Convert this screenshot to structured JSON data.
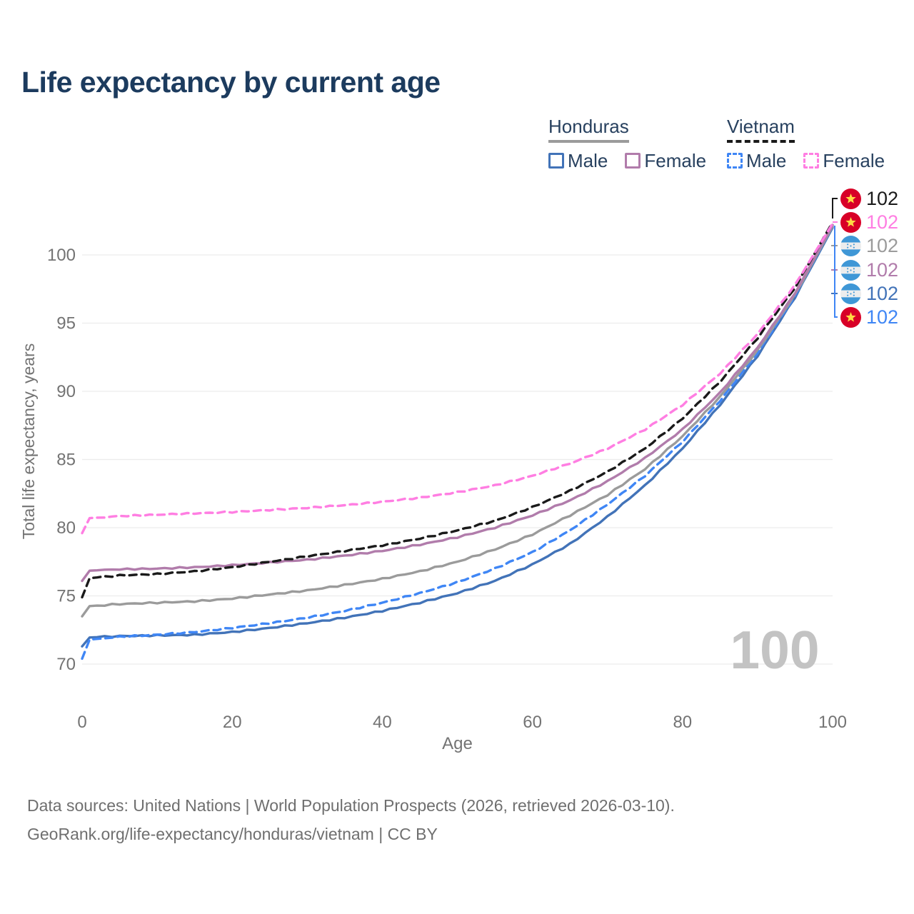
{
  "title": "Life expectancy by current age",
  "legend": {
    "groups": [
      {
        "name": "Honduras",
        "line_style": "solid",
        "underline_color": "#9b9b9b",
        "items": [
          {
            "label": "Male",
            "color": "#4273b8",
            "dashed": false
          },
          {
            "label": "Female",
            "color": "#b17cab",
            "dashed": false
          }
        ]
      },
      {
        "name": "Vietnam",
        "line_style": "dashed",
        "underline_color": "#1a1a1a",
        "items": [
          {
            "label": "Male",
            "color": "#3f86f5",
            "dashed": true
          },
          {
            "label": "Female",
            "color": "#ff7ee2",
            "dashed": true
          }
        ]
      }
    ]
  },
  "chart_data": {
    "type": "line",
    "xlabel": "Age",
    "ylabel": "Total life expectancy, years",
    "x_ticks": [
      0,
      20,
      40,
      60,
      80,
      100
    ],
    "y_ticks": [
      70,
      75,
      80,
      85,
      90,
      95,
      100
    ],
    "xlim": [
      0,
      100
    ],
    "ylim": [
      69.5,
      103
    ],
    "grid": "horizontal",
    "gridline_color": "#ececec",
    "tick_color": "#737373",
    "watermark": "100",
    "watermark_color": "#c3c3c3",
    "x": [
      0,
      1,
      5,
      10,
      15,
      20,
      25,
      30,
      35,
      40,
      45,
      50,
      55,
      60,
      65,
      70,
      75,
      80,
      85,
      90,
      95,
      100
    ],
    "series": [
      {
        "name": "Honduras Male",
        "country": "Honduras",
        "sex": "male",
        "color": "#4273b8",
        "dashed": false,
        "values": [
          71.3,
          71.95,
          72.05,
          72.1,
          72.15,
          72.35,
          72.65,
          73.0,
          73.4,
          73.9,
          74.5,
          75.2,
          76.1,
          77.3,
          78.8,
          80.8,
          83.1,
          85.8,
          89.0,
          92.6,
          96.9,
          102.0
        ]
      },
      {
        "name": "Vietnam Male",
        "country": "Vietnam",
        "sex": "male",
        "color": "#3f86f5",
        "dashed": true,
        "values": [
          70.4,
          71.8,
          72.0,
          72.15,
          72.35,
          72.65,
          73.0,
          73.4,
          73.9,
          74.5,
          75.2,
          76.0,
          77.0,
          78.2,
          79.8,
          81.7,
          83.8,
          86.3,
          89.3,
          92.8,
          97.0,
          102.1
        ]
      },
      {
        "name": "Honduras (both sexes)",
        "country": "Honduras",
        "sex": "both",
        "color": "#9b9b9b",
        "dashed": false,
        "values": [
          73.5,
          74.25,
          74.4,
          74.5,
          74.6,
          74.8,
          75.1,
          75.4,
          75.8,
          76.25,
          76.8,
          77.5,
          78.4,
          79.5,
          80.9,
          82.4,
          84.3,
          86.7,
          89.6,
          93.0,
          97.1,
          102.1
        ]
      },
      {
        "name": "Honduras Female",
        "country": "Honduras",
        "sex": "female",
        "color": "#b17cab",
        "dashed": false,
        "values": [
          76.1,
          76.85,
          76.95,
          77.0,
          77.1,
          77.25,
          77.45,
          77.65,
          77.95,
          78.3,
          78.75,
          79.3,
          80.0,
          80.9,
          82.0,
          83.4,
          85.1,
          87.2,
          89.9,
          93.2,
          97.2,
          102.2
        ]
      },
      {
        "name": "Vietnam (both sexes)",
        "country": "Vietnam",
        "sex": "both",
        "color": "#1a1a1a",
        "dashed": true,
        "values": [
          74.9,
          76.3,
          76.5,
          76.6,
          76.8,
          77.1,
          77.5,
          77.9,
          78.3,
          78.7,
          79.2,
          79.8,
          80.5,
          81.5,
          82.7,
          84.1,
          85.8,
          88.0,
          90.7,
          93.9,
          97.6,
          102.4
        ]
      },
      {
        "name": "Vietnam Female",
        "country": "Vietnam",
        "sex": "female",
        "color": "#ff7ee2",
        "dashed": true,
        "values": [
          79.6,
          80.7,
          80.85,
          80.95,
          81.05,
          81.15,
          81.3,
          81.45,
          81.65,
          81.9,
          82.2,
          82.6,
          83.1,
          83.8,
          84.7,
          85.8,
          87.2,
          89.0,
          91.3,
          94.2,
          97.8,
          102.3
        ]
      }
    ]
  },
  "end_labels": [
    {
      "flag": "vietnam",
      "series": "Vietnam (both sexes)",
      "value": "102",
      "color": "#1a1a1a"
    },
    {
      "flag": "vietnam",
      "series": "Vietnam Female",
      "value": "102",
      "color": "#ff7ee2"
    },
    {
      "flag": "honduras",
      "series": "Honduras (both sexes)",
      "value": "102",
      "color": "#9b9b9b"
    },
    {
      "flag": "honduras",
      "series": "Honduras Female",
      "value": "102",
      "color": "#b17cab"
    },
    {
      "flag": "honduras",
      "series": "Honduras Male",
      "value": "102",
      "color": "#4273b8"
    },
    {
      "flag": "vietnam",
      "series": "Vietnam Male",
      "value": "102",
      "color": "#3f86f5"
    }
  ],
  "footer": {
    "line1": "Data sources: United Nations | World Population Prospects (2026, retrieved 2026-03-10).",
    "line2": "GeoRank.org/life-expectancy/honduras/vietnam | CC BY"
  }
}
